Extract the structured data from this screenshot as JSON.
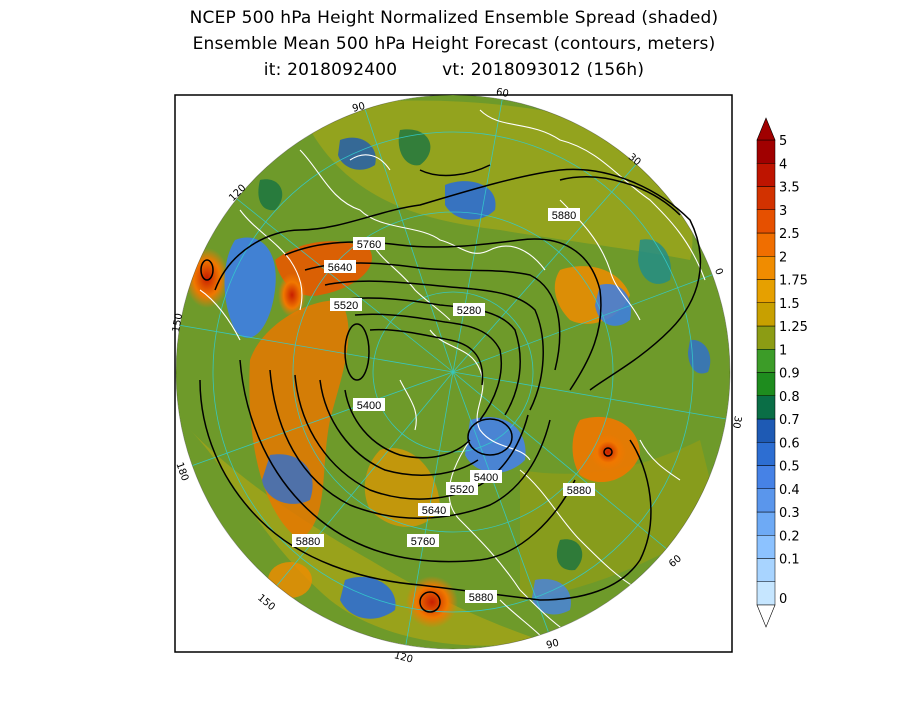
{
  "title": {
    "line1": "NCEP 500 hPa Height Normalized Ensemble Spread (shaded)",
    "line2": "Ensemble Mean 500 hPa Height Forecast (contours, meters)",
    "init": "it: 2018092400",
    "valid": "vt: 2018093012 (156h)"
  },
  "longitude_labels": [
    "60",
    "30",
    "0",
    "30",
    "60",
    "90",
    "120",
    "150",
    "180",
    "150",
    "120",
    "90"
  ],
  "contour_labels": [
    "5880",
    "5760",
    "5640",
    "5520",
    "5280",
    "5400",
    "5400",
    "5520",
    "5640",
    "5760",
    "5880",
    "5880",
    "5880"
  ],
  "colorbar": {
    "levels": [
      "0",
      "0.1",
      "0.2",
      "0.3",
      "0.4",
      "0.5",
      "0.6",
      "0.7",
      "0.8",
      "0.9",
      "1",
      "1.25",
      "1.5",
      "1.75",
      "2",
      "2.5",
      "3",
      "3.5",
      "4",
      "5"
    ],
    "colors": [
      "#c6e6ff",
      "#a8d4ff",
      "#8cc2ff",
      "#6eaaf5",
      "#5a96ec",
      "#4682e6",
      "#2d6ed2",
      "#1e5ab4",
      "#0a6e46",
      "#1e8c1e",
      "#3c9c28",
      "#8c9c14",
      "#c8a000",
      "#e6a000",
      "#f08c00",
      "#f06e00",
      "#e65000",
      "#d23200",
      "#be1400",
      "#a00000"
    ]
  },
  "colors": {
    "background_field": "#6e9a2a",
    "frame": "#000000",
    "coastlines": "#ffffff",
    "contours": "#000000",
    "graticule": "#33cccc"
  }
}
